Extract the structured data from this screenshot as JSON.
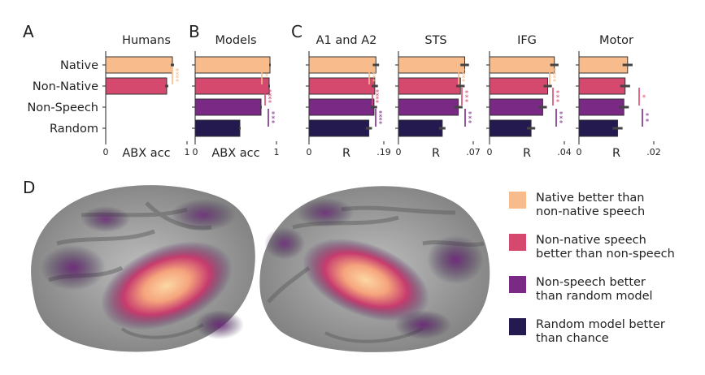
{
  "colors": {
    "native": "#f8bb8b",
    "nonnative": "#d6496f",
    "nonspeech": "#7a2a85",
    "random": "#251a50",
    "err": "#444444",
    "native_star": "#f8bb8b",
    "nonnative_star": "#d6496f",
    "nonspeech_star": "#7a2a85"
  },
  "panel_letters": {
    "a": "A",
    "b": "B",
    "c": "C",
    "d": "D"
  },
  "chart_data": [
    {
      "id": "humans",
      "type": "bar",
      "orientation": "horizontal",
      "title": "Humans",
      "categories": [
        "Native",
        "Non-Native",
        "Non-Speech",
        "Random"
      ],
      "values": [
        0.82,
        0.75,
        null,
        null
      ],
      "errors": [
        0.02,
        0.02,
        null,
        null
      ],
      "xlabel": "ABX acc",
      "xlim": [
        0,
        1
      ],
      "xticks": [
        "0",
        "1"
      ],
      "significance": [
        {
          "from": "Native",
          "to": "Non-Native",
          "color": "native",
          "stars": 4
        }
      ]
    },
    {
      "id": "models",
      "type": "bar",
      "orientation": "horizontal",
      "title": "Models",
      "categories": [
        "Native",
        "Non-Native",
        "Non-Speech",
        "Random"
      ],
      "values": [
        0.92,
        0.91,
        0.81,
        0.55
      ],
      "errors": [
        0.01,
        0.01,
        0.01,
        0.01
      ],
      "xlabel": "ABX acc",
      "xlim": [
        0,
        1
      ],
      "xticks": [
        "0",
        "1"
      ],
      "significance": [
        {
          "from": "Native",
          "to": "Non-Native",
          "color": "native",
          "stars": 1
        },
        {
          "from": "Non-Native",
          "to": "Non-Speech",
          "color": "nonnative",
          "stars": 4
        },
        {
          "from": "Non-Speech",
          "to": "Random",
          "color": "nonspeech",
          "stars": 3
        }
      ]
    },
    {
      "id": "a1a2",
      "type": "bar",
      "orientation": "horizontal",
      "title": "A1 and A2",
      "categories": [
        "Native",
        "Non-Native",
        "Non-Speech",
        "Random"
      ],
      "values": [
        0.17,
        0.167,
        0.165,
        0.152
      ],
      "errors": [
        0.008,
        0.008,
        0.008,
        0.008
      ],
      "xlabel": "R",
      "xlim": [
        0,
        0.19
      ],
      "xticks": [
        "0",
        ".19"
      ],
      "significance": [
        {
          "from": "Native",
          "to": "Non-Native",
          "color": "native",
          "stars": 4
        },
        {
          "from": "Non-Native",
          "to": "Non-Speech",
          "color": "nonnative",
          "stars": 4
        },
        {
          "from": "Non-Speech",
          "to": "Random",
          "color": "nonspeech",
          "stars": 4
        }
      ]
    },
    {
      "id": "sts",
      "type": "bar",
      "orientation": "horizontal",
      "title": "STS",
      "categories": [
        "Native",
        "Non-Native",
        "Non-Speech",
        "Random"
      ],
      "values": [
        0.062,
        0.058,
        0.056,
        0.041
      ],
      "errors": [
        0.004,
        0.004,
        0.004,
        0.003
      ],
      "xlabel": "R",
      "xlim": [
        0,
        0.07
      ],
      "xticks": [
        "0",
        ".07"
      ],
      "significance": [
        {
          "from": "Native",
          "to": "Non-Native",
          "color": "native",
          "stars": 4
        },
        {
          "from": "Non-Native",
          "to": "Non-Speech",
          "color": "nonnative",
          "stars": 3
        },
        {
          "from": "Non-Speech",
          "to": "Random",
          "color": "nonspeech",
          "stars": 3
        }
      ]
    },
    {
      "id": "ifg",
      "type": "bar",
      "orientation": "horizontal",
      "title": "IFG",
      "categories": [
        "Native",
        "Non-Native",
        "Non-Speech",
        "Random"
      ],
      "values": [
        0.039,
        0.035,
        0.032,
        0.025
      ],
      "errors": [
        0.0025,
        0.0025,
        0.0025,
        0.0025
      ],
      "xlabel": "R",
      "xlim": [
        0,
        0.045
      ],
      "xticks": [
        "0",
        ".04"
      ],
      "significance": [
        {
          "from": "Native",
          "to": "Non-Native",
          "color": "native",
          "stars": 4
        },
        {
          "from": "Non-Native",
          "to": "Non-Speech",
          "color": "nonnative",
          "stars": 3
        },
        {
          "from": "Non-Speech",
          "to": "Random",
          "color": "nonspeech",
          "stars": 3
        }
      ]
    },
    {
      "id": "motor",
      "type": "bar",
      "orientation": "horizontal",
      "title": "Motor",
      "categories": [
        "Native",
        "Non-Native",
        "Non-Speech",
        "Random"
      ],
      "values": [
        0.0195,
        0.0185,
        0.018,
        0.0155
      ],
      "errors": [
        0.002,
        0.002,
        0.002,
        0.002
      ],
      "xlabel": "R",
      "xlim": [
        0,
        0.03
      ],
      "xticks": [
        "0",
        ".02"
      ],
      "significance": [
        {
          "from": "Non-Native",
          "to": "Non-Speech",
          "color": "nonnative",
          "stars": 1
        },
        {
          "from": "Non-Speech",
          "to": "Random",
          "color": "nonspeech",
          "stars": 2
        }
      ]
    }
  ],
  "legend": [
    {
      "label": "Native better than\nnon-native speech",
      "color": "native"
    },
    {
      "label": "Non-native speech\nbetter than non-speech",
      "color": "nonnative"
    },
    {
      "label": "Non-speech better\nthan random model",
      "color": "nonspeech"
    },
    {
      "label": "Random model better\nthan chance",
      "color": "random"
    }
  ]
}
